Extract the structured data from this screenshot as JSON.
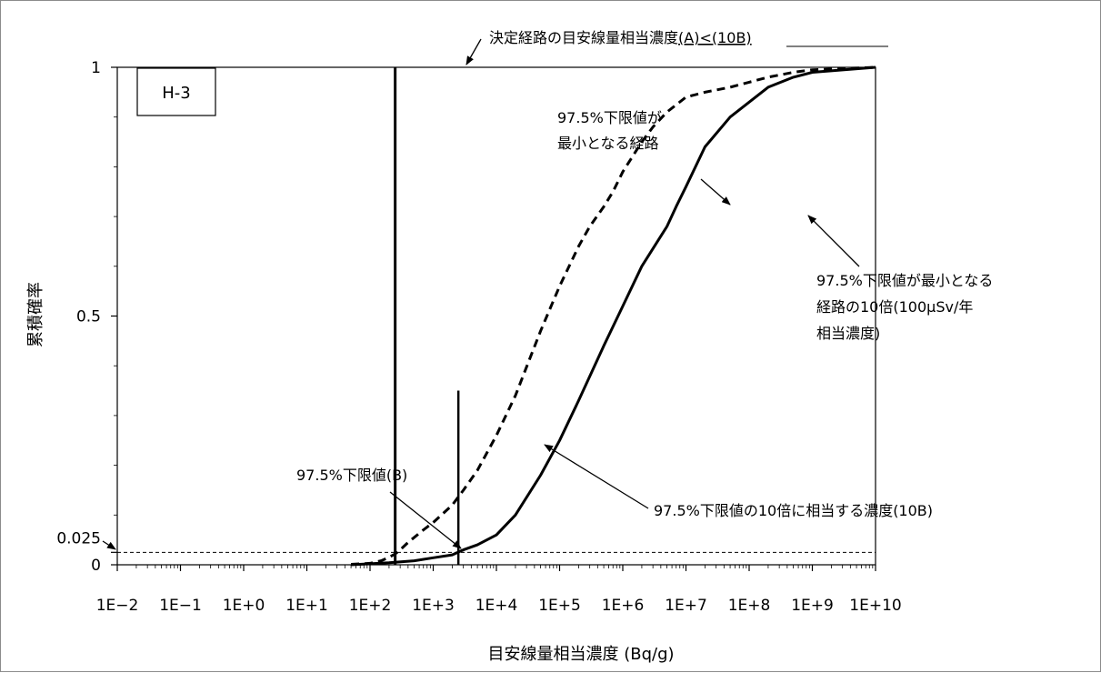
{
  "chart_data": {
    "type": "line",
    "panel_label": "H-3",
    "xlabel": "目安線量相当濃度 (Bq/g)",
    "ylabel": "累積確率",
    "x_scale": "log",
    "xlim": [
      0.01,
      10000000000
    ],
    "ylim": [
      0,
      1
    ],
    "x_tick_labels": [
      "1E−2",
      "1E−1",
      "1E+0",
      "1E+1",
      "1E+2",
      "1E+3",
      "1E+4",
      "1E+5",
      "1E+6",
      "1E+7",
      "1E+8",
      "1E+9",
      "1E+10"
    ],
    "y_tick_labels": [
      "0",
      "0.025",
      "0.5",
      "1"
    ],
    "y_ticks": [
      0,
      0.025,
      0.5,
      1
    ],
    "series": [
      {
        "style": "dashed",
        "x": [
          50,
          100,
          150,
          200,
          250,
          300,
          400,
          500,
          700,
          1000,
          2000,
          3000,
          5000,
          10000,
          20000,
          50000,
          100000,
          200000,
          300000,
          500000,
          700000,
          1000000,
          2000000,
          3000000,
          5000000,
          10000000,
          20000000,
          50000000,
          100000000,
          200000000,
          500000000,
          1000000000,
          10000000000
        ],
        "y": [
          0.001,
          0.003,
          0.008,
          0.015,
          0.022,
          0.03,
          0.045,
          0.055,
          0.07,
          0.085,
          0.12,
          0.15,
          0.19,
          0.26,
          0.34,
          0.47,
          0.56,
          0.64,
          0.68,
          0.72,
          0.75,
          0.79,
          0.85,
          0.88,
          0.91,
          0.94,
          0.95,
          0.96,
          0.97,
          0.98,
          0.99,
          0.995,
          1.0
        ]
      },
      {
        "style": "solid",
        "x": [
          50,
          200,
          500,
          1000,
          2000,
          3000,
          5000,
          10000,
          20000,
          50000,
          100000,
          200000,
          500000,
          1000000,
          2000000,
          5000000,
          7000000,
          10000000,
          20000000,
          50000000,
          100000000,
          200000000,
          500000000,
          1000000000,
          10000000000
        ],
        "y": [
          0,
          0.004,
          0.008,
          0.014,
          0.02,
          0.03,
          0.04,
          0.06,
          0.1,
          0.18,
          0.25,
          0.33,
          0.44,
          0.52,
          0.6,
          0.68,
          0.72,
          0.76,
          0.84,
          0.9,
          0.93,
          0.96,
          0.98,
          0.99,
          1.0
        ]
      }
    ],
    "vertical_lines": [
      {
        "x": 250,
        "y_top": 1.0
      },
      {
        "x": 2500,
        "y_top": 0.35
      }
    ],
    "reference_line": {
      "y": 0.025,
      "style": "dashed"
    },
    "annotations": {
      "top_title": "決定経路の目安線量相当濃度",
      "top_title_underlined": "(A)<(10B)",
      "dashed_label_line1": "97.5%下限値が",
      "dashed_label_line2": "最小となる経路",
      "solid_label_line1": "97.5%下限値が最小となる",
      "solid_label_line2": "経路の10倍(100μSv/年",
      "solid_label_line3": "相当濃度)",
      "lower_b_label": "97.5%下限値(B)",
      "ten_b_label": "97.5%下限値の10倍に相当する濃度(10B)"
    }
  }
}
